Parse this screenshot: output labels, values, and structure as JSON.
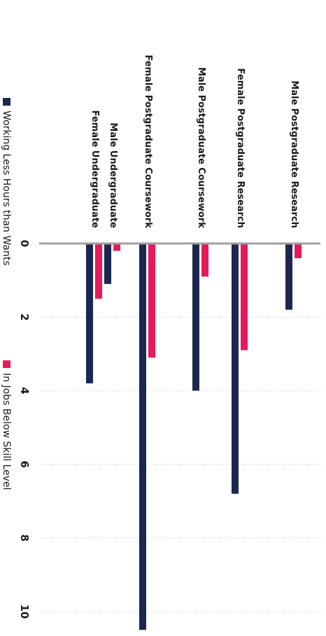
{
  "chart_data": {
    "type": "bar",
    "orientation": "horizontal",
    "categories": [
      "Male Postgraduate Research",
      "Female Postgraduate Research",
      "Male Postgraduate Coursework",
      "Female Postgraduate Coursework",
      "Male Undergraduate",
      "Female Undergraduate"
    ],
    "series": [
      {
        "name": "Working Less Hours than Wants",
        "color": "#1c2750",
        "values": [
          1.8,
          6.8,
          4.0,
          10.5,
          1.1,
          3.8
        ]
      },
      {
        "name": "In Jobs Below Skill Level",
        "color": "#e8195a",
        "values": [
          0.4,
          2.9,
          0.9,
          3.1,
          0.2,
          1.5
        ]
      }
    ],
    "xlim": [
      0,
      10.5
    ],
    "ticks": [
      0,
      2,
      4,
      6,
      8,
      10
    ],
    "grid": true,
    "legend_position": "bottom",
    "title": "",
    "xlabel": "",
    "ylabel": ""
  }
}
